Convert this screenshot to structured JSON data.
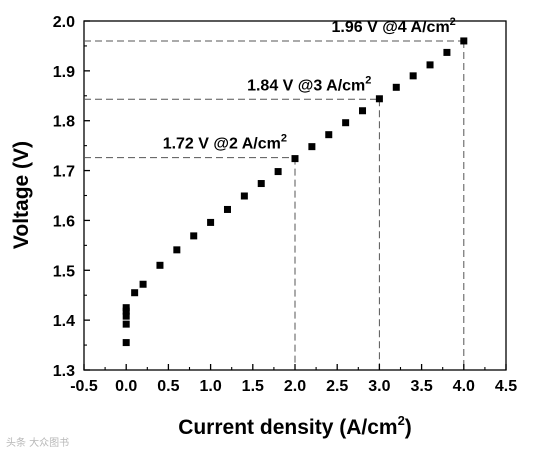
{
  "chart_data": {
    "type": "scatter",
    "xlabel": "Current density (A/cm",
    "xlabel_sup": "2",
    "xlabel_tail": ")",
    "ylabel": "Voltage (V)",
    "xlim": [
      -0.5,
      4.5
    ],
    "ylim": [
      1.3,
      2.0
    ],
    "xticks": [
      "-0.5",
      "0.0",
      "0.5",
      "1.0",
      "1.5",
      "2.0",
      "2.5",
      "3.0",
      "3.5",
      "4.0",
      "4.5"
    ],
    "yticks": [
      "1.3",
      "1.4",
      "1.5",
      "1.6",
      "1.7",
      "1.8",
      "1.9",
      "2.0"
    ],
    "grid": false,
    "marker": "square",
    "color": "#000000",
    "points": [
      {
        "x": 0.0,
        "y": 1.355
      },
      {
        "x": 0.0,
        "y": 1.392
      },
      {
        "x": 0.0,
        "y": 1.408
      },
      {
        "x": 0.0,
        "y": 1.418
      },
      {
        "x": 0.0,
        "y": 1.425
      },
      {
        "x": 0.1,
        "y": 1.455
      },
      {
        "x": 0.2,
        "y": 1.472
      },
      {
        "x": 0.4,
        "y": 1.51
      },
      {
        "x": 0.6,
        "y": 1.541
      },
      {
        "x": 0.8,
        "y": 1.569
      },
      {
        "x": 1.0,
        "y": 1.596
      },
      {
        "x": 1.2,
        "y": 1.622
      },
      {
        "x": 1.4,
        "y": 1.649
      },
      {
        "x": 1.6,
        "y": 1.674
      },
      {
        "x": 1.8,
        "y": 1.698
      },
      {
        "x": 2.0,
        "y": 1.724
      },
      {
        "x": 2.2,
        "y": 1.748
      },
      {
        "x": 2.4,
        "y": 1.772
      },
      {
        "x": 2.6,
        "y": 1.796
      },
      {
        "x": 2.8,
        "y": 1.82
      },
      {
        "x": 3.0,
        "y": 1.844
      },
      {
        "x": 3.2,
        "y": 1.867
      },
      {
        "x": 3.4,
        "y": 1.89
      },
      {
        "x": 3.6,
        "y": 1.912
      },
      {
        "x": 3.8,
        "y": 1.937
      },
      {
        "x": 4.0,
        "y": 1.96
      }
    ],
    "annotations": [
      {
        "text": "1.72 V @2 A/cm",
        "sup": "2",
        "x": 2.0,
        "y": 1.726
      },
      {
        "text": "1.84 V @3 A/cm",
        "sup": "2",
        "x": 3.0,
        "y": 1.843
      },
      {
        "text": "1.96 V @4 A/cm",
        "sup": "2",
        "x": 4.0,
        "y": 1.96
      }
    ]
  },
  "watermark": "头条 大众图书"
}
